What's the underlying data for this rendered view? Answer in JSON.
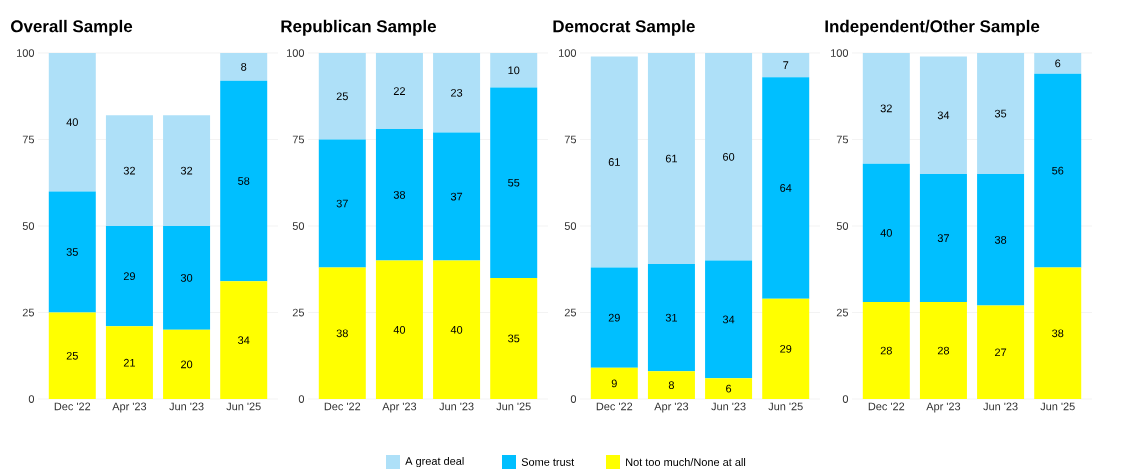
{
  "chart_data": [
    {
      "type": "bar",
      "title": "Overall Sample",
      "stacked": true,
      "grid": "y",
      "legend": "bottom",
      "data_labels": true,
      "categories": [
        "Dec '22",
        "Apr '23",
        "Jun '23",
        "Jun '25"
      ],
      "ylim": [
        0,
        100
      ],
      "yticks": [
        0,
        25,
        50,
        75,
        100
      ],
      "series": [
        {
          "name": "Not too much/None at all",
          "color": "#ffff00",
          "values": [
            25,
            21,
            20,
            34
          ]
        },
        {
          "name": "Some trust",
          "color": "#00bfff",
          "values": [
            35,
            29,
            30,
            58
          ]
        },
        {
          "name": "A great deal",
          "color": "#aee0f8",
          "values": [
            40,
            32,
            32,
            8
          ]
        }
      ]
    },
    {
      "type": "bar",
      "title": "Republican Sample",
      "stacked": true,
      "grid": "y",
      "data_labels": true,
      "categories": [
        "Dec '22",
        "Apr '23",
        "Jun '23",
        "Jun '25"
      ],
      "ylim": [
        0,
        100
      ],
      "yticks": [
        0,
        25,
        50,
        75,
        100
      ],
      "series": [
        {
          "color": "#ffff00",
          "values": [
            38,
            40,
            40,
            35
          ]
        },
        {
          "color": "#00bfff",
          "values": [
            37,
            38,
            37,
            55
          ]
        },
        {
          "color": "#aee0f8",
          "values": [
            25,
            22,
            23,
            10
          ]
        }
      ]
    },
    {
      "type": "bar",
      "title": "Democrat Sample",
      "stacked": true,
      "grid": "y",
      "data_labels": true,
      "categories": [
        "Dec '22",
        "Apr '23",
        "Jun '23",
        "Jun '25"
      ],
      "ylim": [
        0,
        100
      ],
      "yticks": [
        0,
        25,
        50,
        75,
        100
      ],
      "series": [
        {
          "color": "#ffff00",
          "values": [
            9,
            8,
            6,
            29
          ]
        },
        {
          "color": "#00bfff",
          "values": [
            29,
            31,
            34,
            64
          ]
        },
        {
          "color": "#aee0f8",
          "values": [
            61,
            61,
            60,
            7
          ]
        }
      ]
    },
    {
      "type": "bar",
      "title": "Independent/Other Sample",
      "stacked": true,
      "grid": "y",
      "data_labels": true,
      "categories": [
        "Dec '22",
        "Apr '23",
        "Jun '23",
        "Jun '25"
      ],
      "ylim": [
        0,
        100
      ],
      "yticks": [
        0,
        25,
        50,
        75,
        100
      ],
      "series": [
        {
          "color": "#ffff00",
          "values": [
            28,
            28,
            27,
            38
          ]
        },
        {
          "color": "#00bfff",
          "values": [
            40,
            37,
            38,
            56
          ]
        },
        {
          "color": "#aee0f8",
          "values": [
            32,
            34,
            35,
            6
          ]
        }
      ]
    }
  ]
}
